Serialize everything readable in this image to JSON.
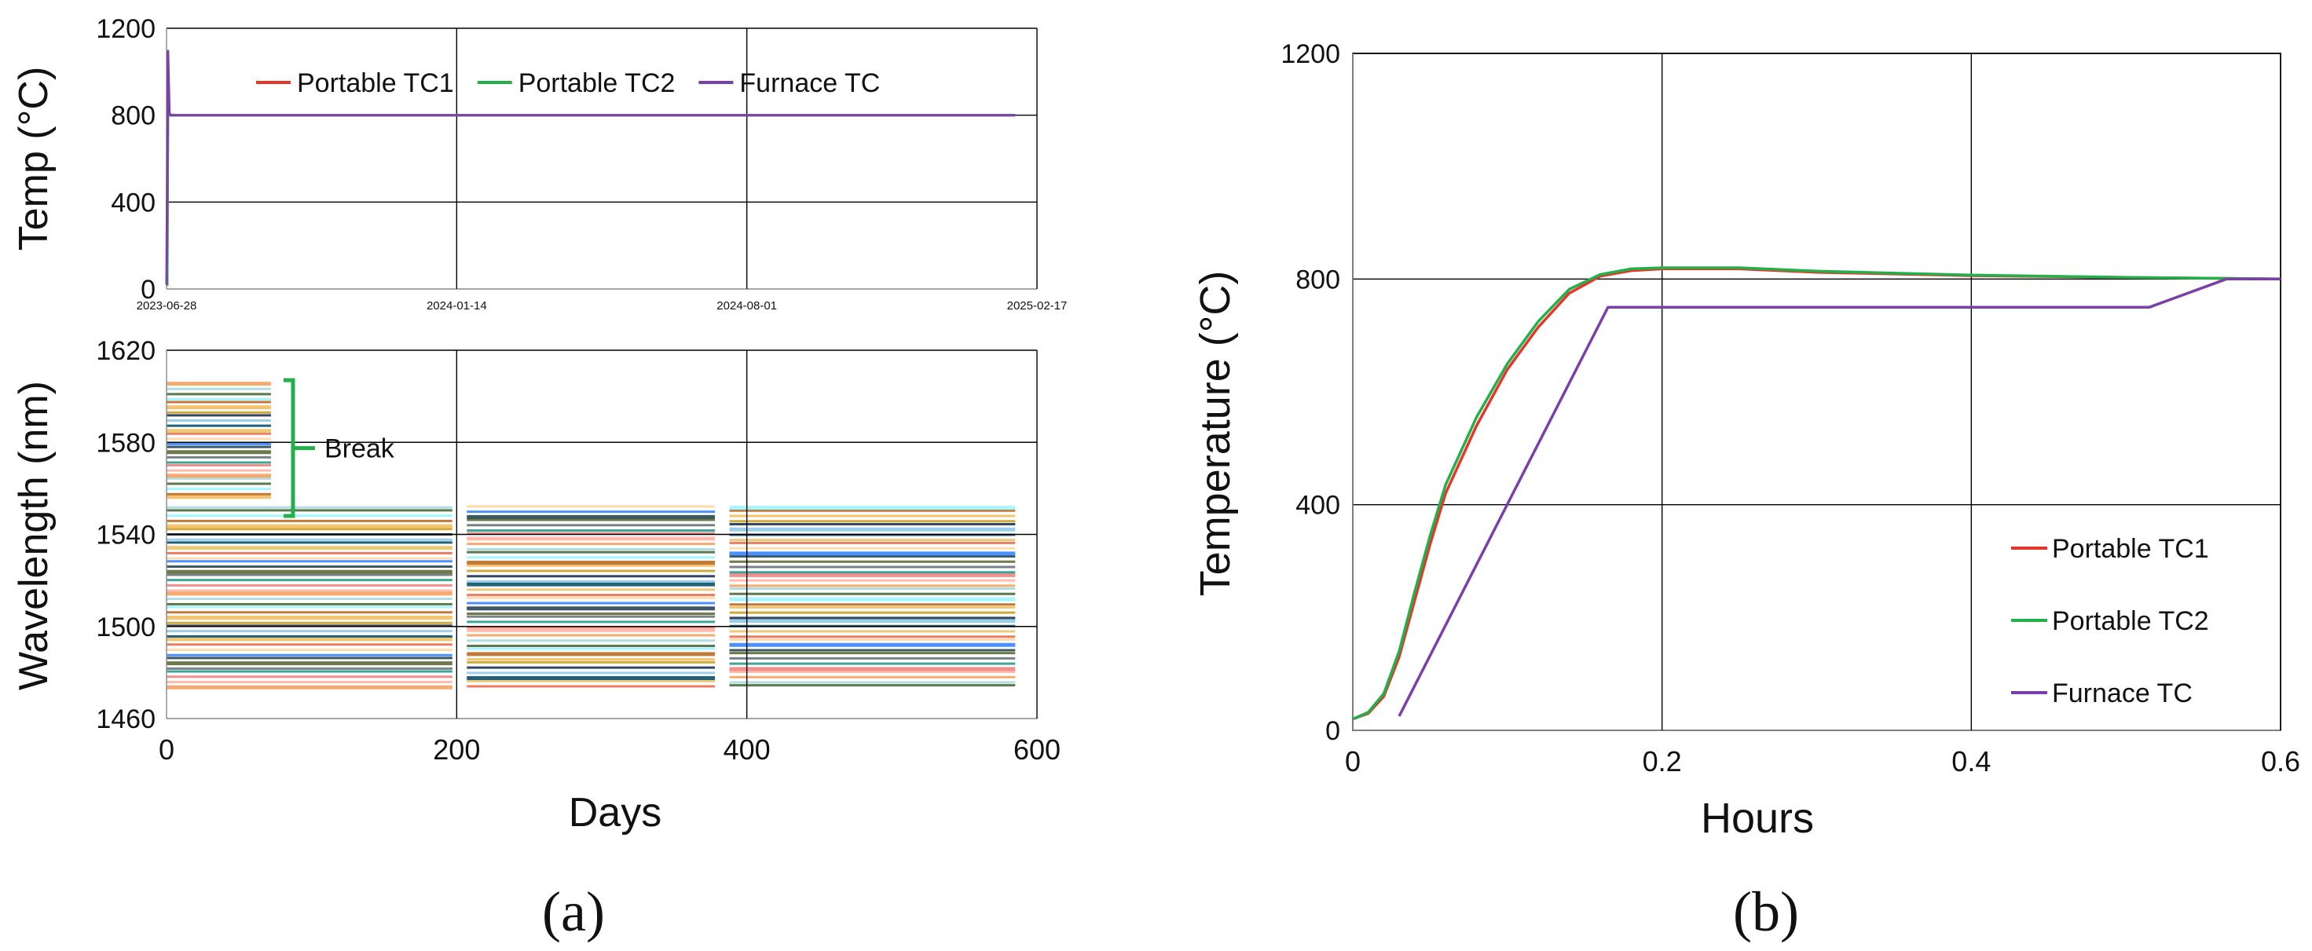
{
  "panel_labels": {
    "a": "(a)",
    "b": "(b)"
  },
  "colors": {
    "tc1": "#e8352a",
    "tc2": "#22b04a",
    "furnace": "#7a3fa8",
    "break": "#22b04a",
    "grid": "#000000",
    "axis": "#888888"
  },
  "chart_data": [
    {
      "id": "a_top",
      "type": "line",
      "ylabel": "Temp (°C)",
      "ylim": [
        0,
        1200
      ],
      "yticks": [
        0,
        400,
        800,
        1200
      ],
      "xlim": [
        0,
        600
      ],
      "date_ticks": [
        {
          "day": 0,
          "label": "2023-06-28"
        },
        {
          "day": 200,
          "label": "2024-01-14"
        },
        {
          "day": 400,
          "label": "2024-08-01"
        },
        {
          "day": 600,
          "label": "2025-02-17"
        }
      ],
      "legend": [
        "Portable TC1",
        "Portable TC2",
        "Furnace TC"
      ],
      "series": [
        {
          "name": "Portable TC1",
          "x": [
            0,
            0.5,
            1,
            585
          ],
          "y": [
            20,
            20,
            800,
            800
          ]
        },
        {
          "name": "Portable TC2",
          "x": [
            0,
            0.5,
            1,
            585
          ],
          "y": [
            20,
            20,
            800,
            800
          ]
        },
        {
          "name": "Furnace TC",
          "x": [
            0,
            1,
            2,
            3,
            585
          ],
          "y": [
            20,
            1100,
            810,
            800,
            800
          ]
        }
      ]
    },
    {
      "id": "a_bottom",
      "type": "line",
      "ylabel": "Wavelength (nm)",
      "xlabel": "Days",
      "ylim": [
        1460,
        1620
      ],
      "yticks": [
        1460,
        1500,
        1540,
        1580,
        1620
      ],
      "xlim": [
        0,
        600
      ],
      "xticks": [
        0,
        200,
        400,
        600
      ],
      "annotation": "Break",
      "break_range_nm": [
        1548,
        1607
      ],
      "segments_days": [
        [
          0,
          197
        ],
        [
          207,
          378
        ],
        [
          388,
          585
        ]
      ],
      "break_segment_days": [
        0,
        72
      ],
      "lower_band_nm": [
        1473,
        1553
      ],
      "upper_band_nm": [
        1555,
        1606
      ],
      "series_count": 40
    },
    {
      "id": "b",
      "type": "line",
      "ylabel": "Temperature (°C)",
      "xlabel": "Hours",
      "ylim": [
        0,
        1200
      ],
      "yticks": [
        0,
        400,
        800,
        1200
      ],
      "xlim": [
        0,
        0.6
      ],
      "xticks": [
        0,
        0.2,
        0.4,
        0.6
      ],
      "legend": [
        "Portable TC1",
        "Portable TC2",
        "Furnace TC"
      ],
      "series": [
        {
          "name": "Portable TC1",
          "x": [
            0,
            0.01,
            0.02,
            0.03,
            0.04,
            0.05,
            0.06,
            0.08,
            0.1,
            0.12,
            0.14,
            0.16,
            0.18,
            0.2,
            0.25,
            0.3,
            0.4,
            0.5,
            0.6
          ],
          "y": [
            20,
            30,
            60,
            130,
            230,
            330,
            420,
            540,
            640,
            715,
            775,
            805,
            815,
            818,
            818,
            812,
            806,
            803,
            800
          ]
        },
        {
          "name": "Portable TC2",
          "x": [
            0,
            0.01,
            0.02,
            0.03,
            0.04,
            0.05,
            0.06,
            0.08,
            0.1,
            0.12,
            0.14,
            0.16,
            0.18,
            0.2,
            0.25,
            0.3,
            0.4,
            0.5,
            0.6
          ],
          "y": [
            20,
            32,
            65,
            140,
            245,
            345,
            435,
            555,
            650,
            725,
            782,
            808,
            818,
            820,
            820,
            814,
            807,
            803,
            800
          ]
        },
        {
          "name": "Furnace TC",
          "x": [
            0.03,
            0.165,
            0.515,
            0.565,
            0.6
          ],
          "y": [
            25,
            750,
            750,
            800,
            800
          ]
        }
      ]
    }
  ]
}
